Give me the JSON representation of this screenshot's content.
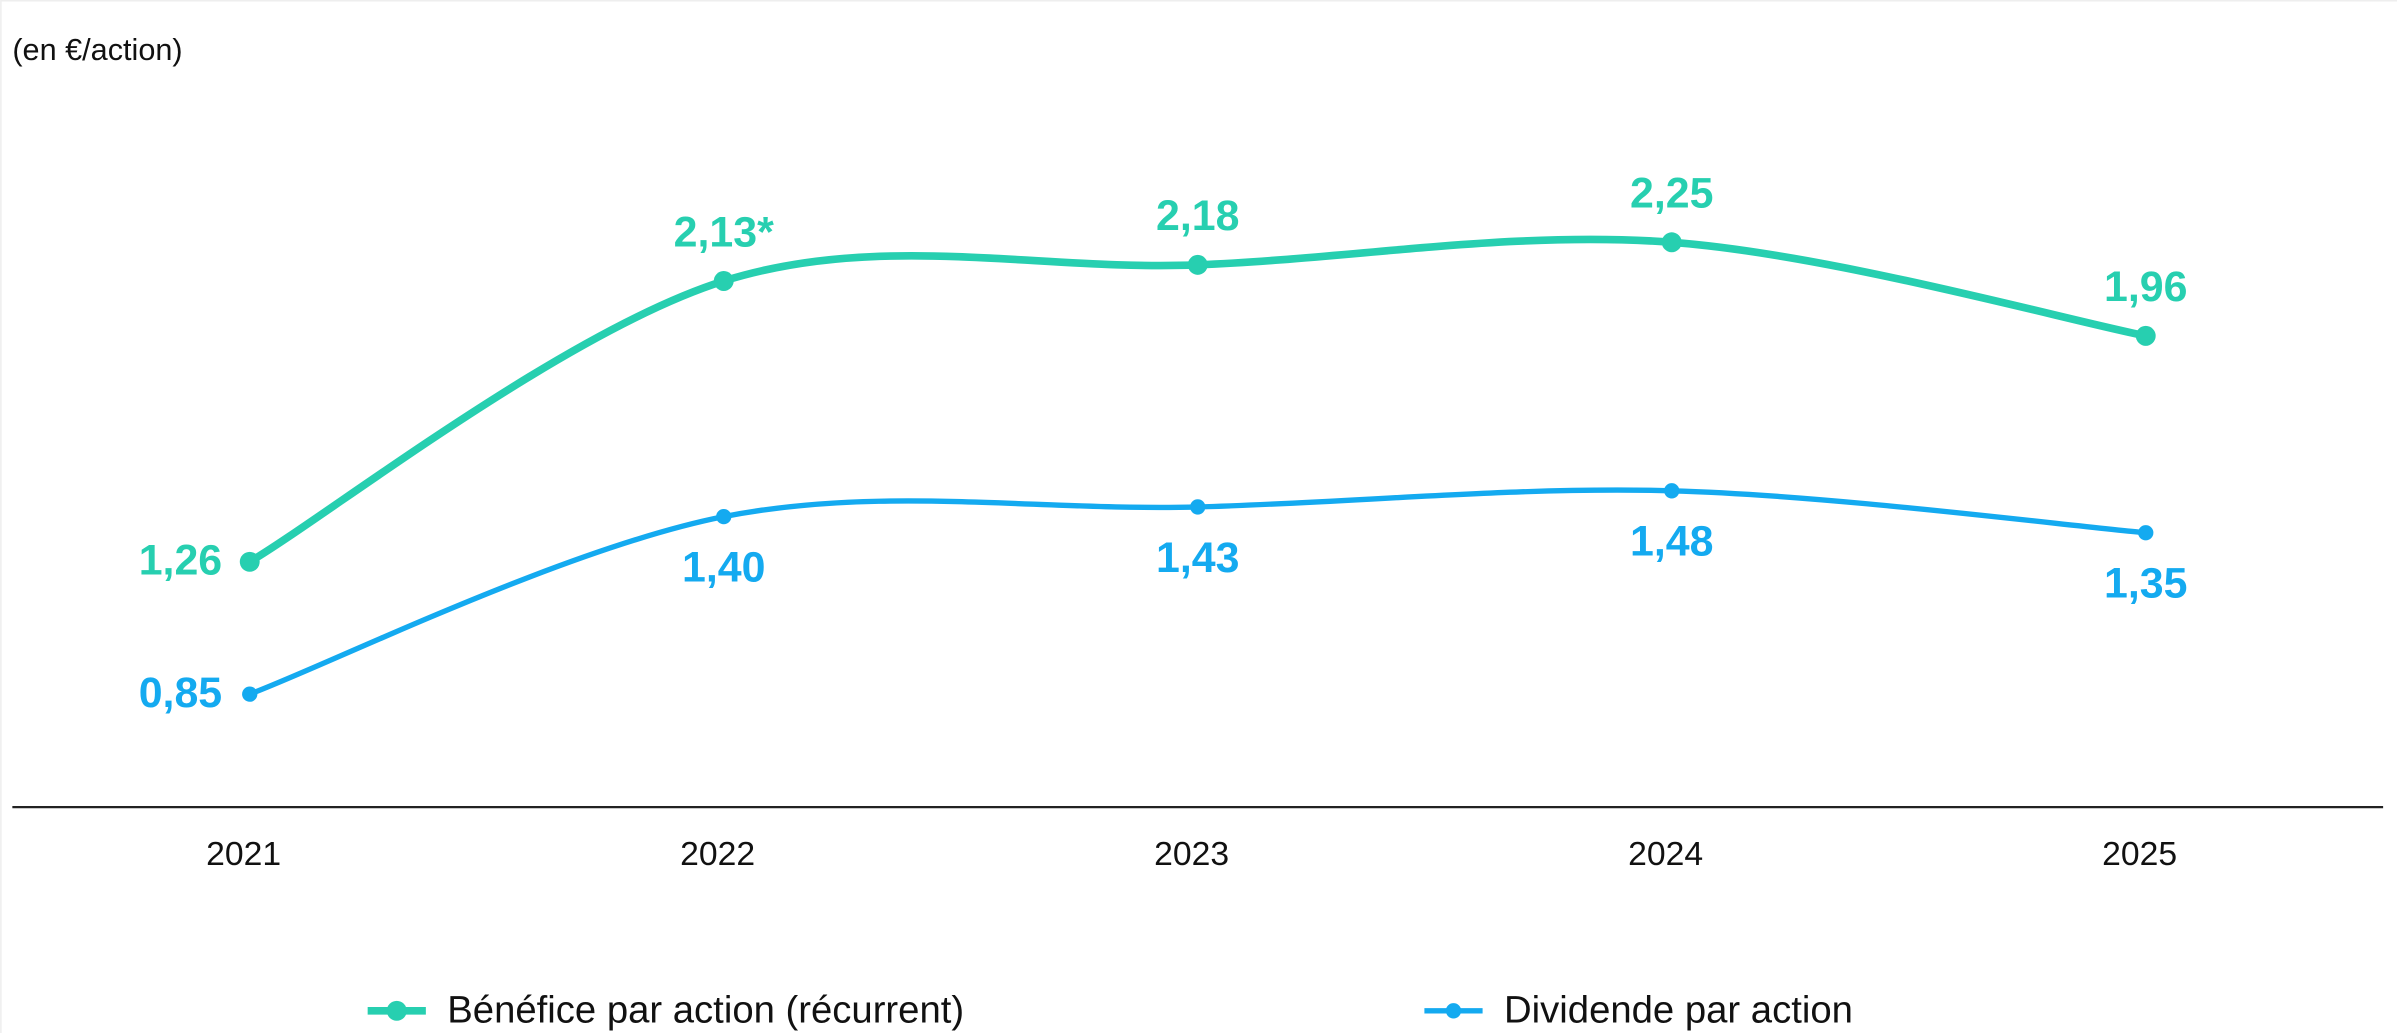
{
  "chart_data": {
    "type": "line",
    "subtitle": "(en €/action)",
    "categories": [
      "2021",
      "2022",
      "2023",
      "2024",
      "2025"
    ],
    "series": [
      {
        "name": "Bénéfice par action (récurrent)",
        "color": "#27cfb0",
        "values": [
          1.26,
          2.13,
          2.18,
          2.25,
          1.96
        ],
        "value_labels": [
          "1,26",
          "2,13*",
          "2,18",
          "2,25",
          "1,96"
        ]
      },
      {
        "name": "Dividende par action",
        "color": "#14aaf0",
        "values": [
          0.85,
          1.4,
          1.43,
          1.48,
          1.35
        ],
        "value_labels": [
          "0,85",
          "1,40",
          "1,43",
          "1,48",
          "1,35"
        ]
      }
    ],
    "ylim": [
      0.5,
      2.5
    ],
    "legend": "bottom"
  }
}
